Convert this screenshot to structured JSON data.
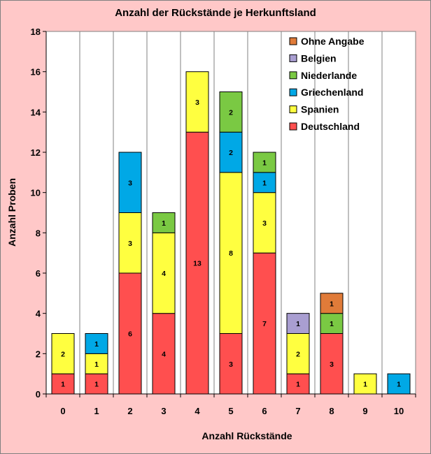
{
  "chart_data": {
    "type": "bar",
    "stacked": true,
    "title": "Anzahl der Rückstände je Herkunftsland",
    "xlabel": "Anzahl Rückstände",
    "ylabel": "Anzahl Proben",
    "categories": [
      "0",
      "1",
      "2",
      "3",
      "4",
      "5",
      "6",
      "7",
      "8",
      "9",
      "10"
    ],
    "ylim": [
      0,
      18
    ],
    "yticks": [
      "0",
      "2",
      "4",
      "6",
      "8",
      "10",
      "12",
      "14",
      "16",
      "18"
    ],
    "grid": "vertical",
    "legend_position": "top-right",
    "series": [
      {
        "name": "Deutschland",
        "color": "#ff4f4f",
        "values": [
          1,
          1,
          6,
          4,
          13,
          3,
          7,
          1,
          3,
          0,
          0
        ]
      },
      {
        "name": "Spanien",
        "color": "#ffff40",
        "values": [
          2,
          1,
          3,
          4,
          3,
          8,
          3,
          2,
          0,
          1,
          0
        ]
      },
      {
        "name": "Griechenland",
        "color": "#00a8e6",
        "values": [
          0,
          1,
          3,
          0,
          0,
          2,
          1,
          0,
          0,
          0,
          1
        ]
      },
      {
        "name": "Niederlande",
        "color": "#7ac943",
        "values": [
          0,
          0,
          0,
          1,
          0,
          2,
          1,
          0,
          1,
          0,
          0
        ]
      },
      {
        "name": "Belgien",
        "color": "#a99ed1",
        "values": [
          0,
          0,
          0,
          0,
          0,
          0,
          0,
          1,
          0,
          0,
          0
        ]
      },
      {
        "name": "Ohne Angabe",
        "color": "#e07b39",
        "values": [
          0,
          0,
          0,
          0,
          0,
          0,
          0,
          0,
          1,
          0,
          0
        ]
      }
    ],
    "legend_order": [
      "Ohne Angabe",
      "Belgien",
      "Niederlande",
      "Griechenland",
      "Spanien",
      "Deutschland"
    ]
  }
}
